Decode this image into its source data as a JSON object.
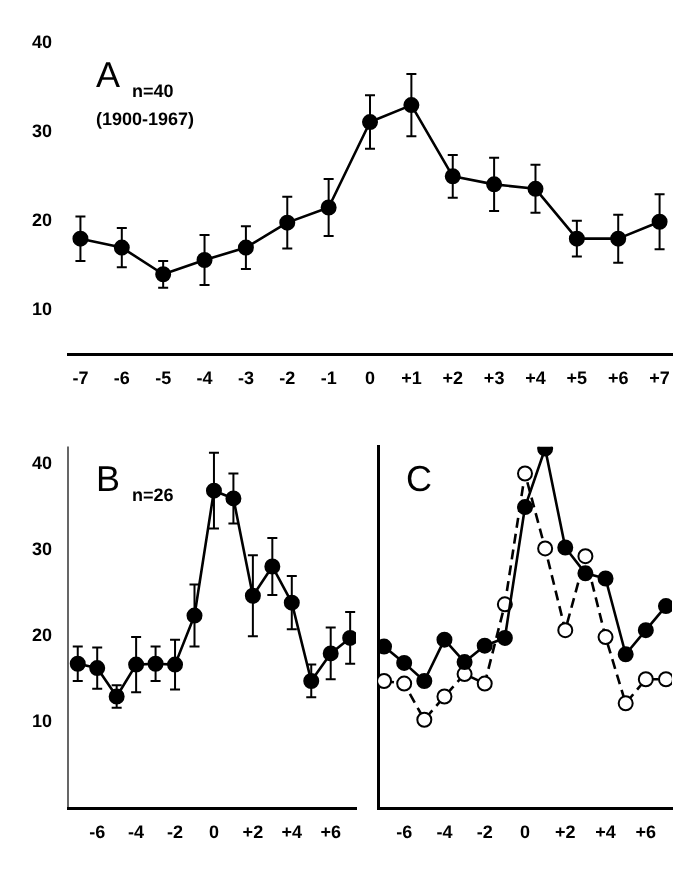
{
  "chart_data": [
    {
      "type": "line",
      "annotations": [
        "A",
        "n=40",
        "(1900-1967)"
      ],
      "x": [
        -7,
        -6,
        -5,
        -4,
        -3,
        -2,
        -1,
        0,
        1,
        2,
        3,
        4,
        5,
        6,
        7
      ],
      "xlim": [
        -7.3,
        7.3
      ],
      "xticks": [
        -7,
        -6,
        -5,
        -4,
        -3,
        -2,
        -1,
        0,
        {
          "value": 1,
          "label": "+1"
        },
        {
          "value": 2,
          "label": "+2"
        },
        {
          "value": 3,
          "label": "+3"
        },
        {
          "value": 4,
          "label": "+4"
        },
        {
          "value": 5,
          "label": "+5"
        },
        {
          "value": 6,
          "label": "+6"
        },
        {
          "value": 7,
          "label": "+7"
        }
      ],
      "ylim": [
        5,
        40
      ],
      "yticks": [
        10,
        20,
        30,
        40
      ],
      "grid": false,
      "legend": false,
      "marker": "circle",
      "series": [
        {
          "color": "#000000",
          "line_style": "solid",
          "values": [
            18,
            17,
            14,
            15.6,
            17,
            19.8,
            21.5,
            31.1,
            33,
            25,
            24.1,
            23.6,
            18,
            18,
            19.9
          ],
          "errors": [
            2.5,
            2.2,
            1.5,
            2.8,
            2.4,
            2.9,
            3.2,
            3,
            3.5,
            2.4,
            3,
            2.7,
            2,
            2.7,
            3.1
          ]
        }
      ]
    },
    {
      "type": "line",
      "annotations": [
        "B",
        "n=26"
      ],
      "x": [
        -7,
        -6,
        -5,
        -4,
        -3,
        -2,
        -1,
        0,
        1,
        2,
        3,
        4,
        5,
        6,
        7
      ],
      "xlim": [
        -7.5,
        7.3
      ],
      "xticks": [
        -6,
        -4,
        -2,
        0,
        {
          "value": 2,
          "label": "+2"
        },
        {
          "value": 4,
          "label": "+4"
        },
        {
          "value": 6,
          "label": "+6"
        }
      ],
      "ylim": [
        0,
        42
      ],
      "yticks": [
        10,
        20,
        30,
        40
      ],
      "grid": false,
      "legend": false,
      "marker": "circle",
      "series": [
        {
          "color": "#000000",
          "line_style": "solid",
          "values": [
            16.8,
            16.3,
            13,
            16.7,
            16.8,
            16.7,
            22.4,
            36.9,
            36,
            24.7,
            28.1,
            23.9,
            14.8,
            18,
            19.8
          ],
          "errors": [
            2,
            2.4,
            1.3,
            3.2,
            2,
            2.9,
            3.6,
            4.4,
            2.9,
            4.7,
            3.3,
            3.1,
            1.9,
            3,
            3
          ]
        }
      ]
    },
    {
      "type": "line",
      "annotations": [
        "C"
      ],
      "x": [
        -7,
        -6,
        -5,
        -4,
        -3,
        -2,
        -1,
        0,
        1,
        2,
        3,
        4,
        5,
        6,
        7
      ],
      "xlim": [
        -7.3,
        7.3
      ],
      "xticks": [
        -6,
        -4,
        -2,
        0,
        {
          "value": 2,
          "label": "+2"
        },
        {
          "value": 4,
          "label": "+4"
        },
        {
          "value": 6,
          "label": "+6"
        }
      ],
      "ylim": [
        0,
        42
      ],
      "yticks": [
        10,
        20,
        30,
        40
      ],
      "tick_labels": "x",
      "grid": false,
      "legend": false,
      "marker": "circle",
      "series": [
        {
          "color": "#000000",
          "line_style": "solid",
          "values": [
            18.8,
            16.9,
            14.8,
            19.6,
            17,
            18.9,
            19.8,
            35,
            41.8,
            30.3,
            27.3,
            26.7,
            17.9,
            20.7,
            23.5
          ]
        },
        {
          "color": "#000000",
          "line_style": "dashed",
          "values": [
            14.8,
            14.5,
            10.3,
            13,
            15.6,
            14.5,
            23.7,
            38.9,
            30.2,
            20.7,
            29.3,
            19.9,
            12.2,
            15,
            15
          ]
        }
      ]
    }
  ]
}
